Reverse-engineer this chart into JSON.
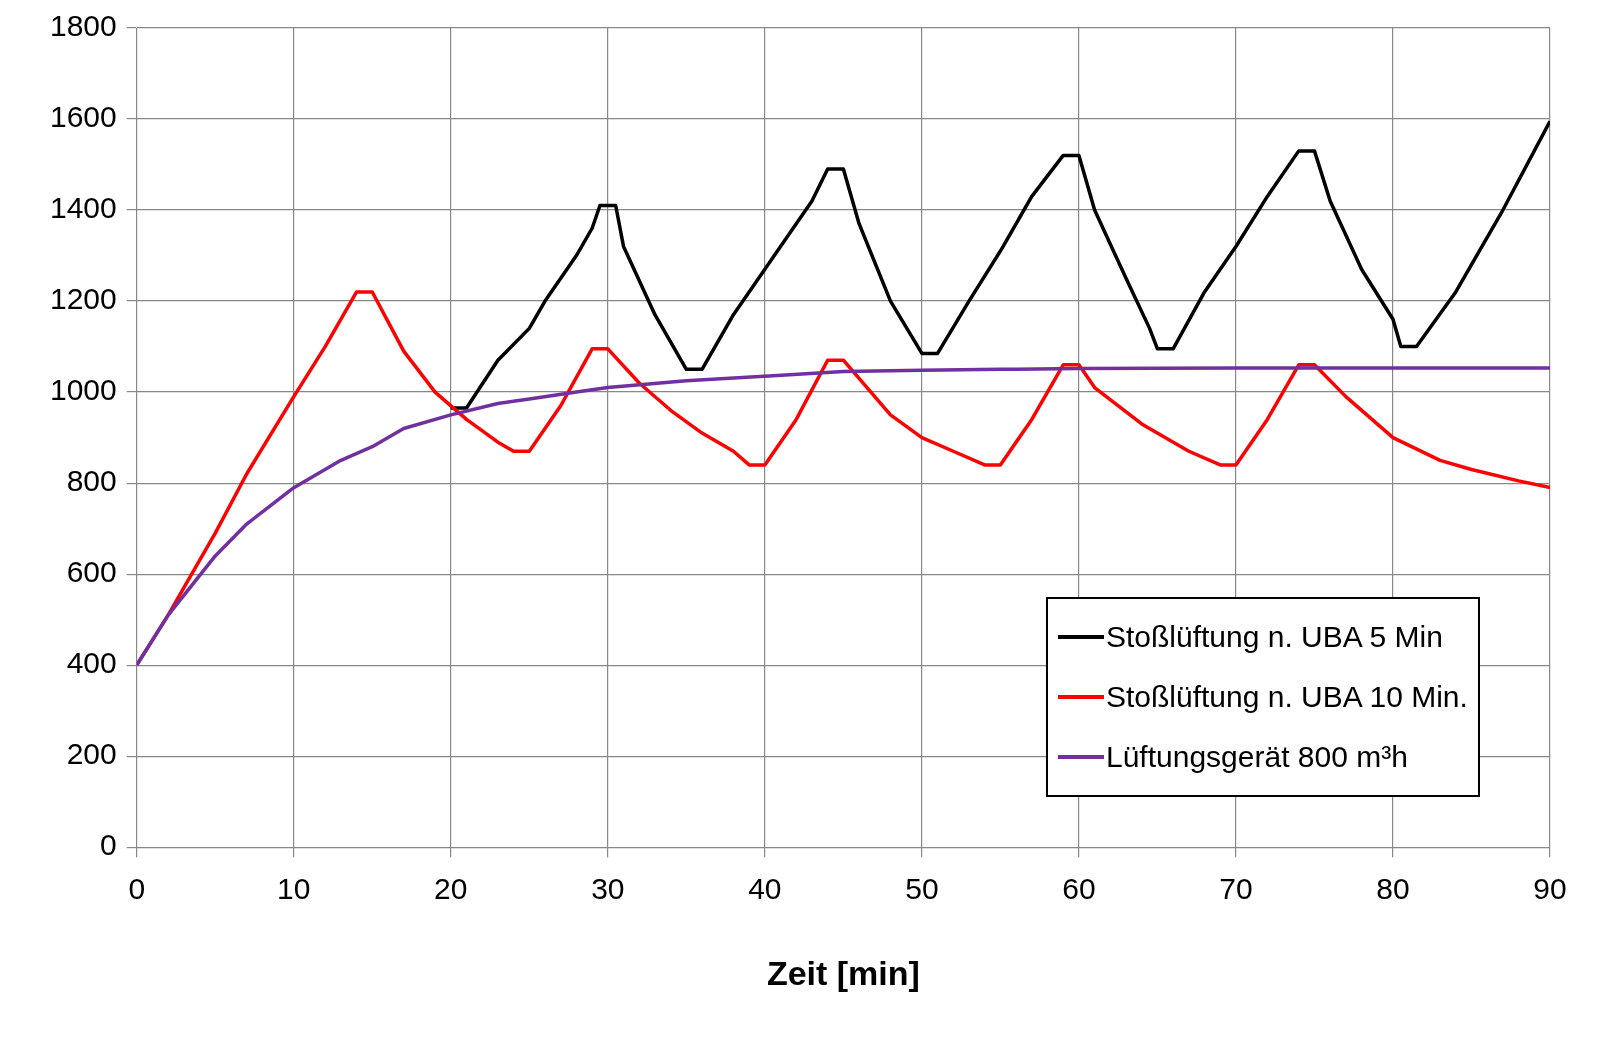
{
  "chart_data": {
    "type": "line",
    "xlabel": "Zeit [min]",
    "xlim": [
      0,
      90
    ],
    "xticks": [
      0,
      10,
      20,
      30,
      40,
      50,
      60,
      70,
      80,
      90
    ],
    "ylim": [
      0,
      1800
    ],
    "yticks": [
      0,
      200,
      400,
      600,
      800,
      1000,
      1200,
      1400,
      1600,
      1800
    ],
    "grid": true,
    "legend": "bottom right",
    "marker": "none",
    "line_style": "solid",
    "series": [
      {
        "name": "Stoßlüftung n. UBA 5 Min",
        "color": "#000000",
        "x": [
          20,
          21,
          23,
          25,
          26,
          28,
          29,
          29.5,
          30.5,
          31,
          33,
          35,
          36,
          38,
          40,
          43,
          44,
          45,
          46,
          48,
          50,
          51,
          53,
          55,
          57,
          59,
          60,
          61,
          63,
          64.5,
          65,
          66,
          68,
          70,
          72,
          74,
          75,
          76,
          78,
          80,
          80.5,
          81.5,
          84,
          87,
          90
        ],
        "values": [
          965,
          965,
          1070,
          1140,
          1200,
          1300,
          1360,
          1410,
          1410,
          1320,
          1170,
          1050,
          1050,
          1170,
          1270,
          1420,
          1490,
          1490,
          1370,
          1200,
          1085,
          1085,
          1200,
          1310,
          1430,
          1520,
          1520,
          1400,
          1250,
          1140,
          1095,
          1095,
          1220,
          1320,
          1430,
          1530,
          1530,
          1420,
          1270,
          1160,
          1100,
          1100,
          1220,
          1400,
          1595
        ]
      },
      {
        "name": "Stoßlüftung n. UBA 10 Min.",
        "color": "#ff0000",
        "x": [
          0,
          2,
          4,
          5,
          7,
          10,
          12,
          14,
          15,
          17,
          19,
          21,
          23,
          24,
          25,
          27,
          29,
          30,
          32,
          34,
          36,
          38,
          39,
          40,
          42,
          44,
          45,
          46,
          48,
          50,
          52,
          54,
          55,
          57,
          59,
          60,
          61,
          64,
          67,
          69,
          70,
          72,
          74,
          75,
          77,
          80,
          83,
          85,
          88,
          90
        ],
        "values": [
          400,
          510,
          630,
          690,
          820,
          990,
          1100,
          1220,
          1220,
          1090,
          1000,
          940,
          890,
          870,
          870,
          970,
          1095,
          1095,
          1020,
          960,
          910,
          870,
          840,
          840,
          940,
          1070,
          1070,
          1030,
          950,
          900,
          870,
          840,
          840,
          940,
          1060,
          1060,
          1010,
          930,
          870,
          840,
          840,
          940,
          1060,
          1060,
          990,
          900,
          850,
          830,
          805,
          790
        ]
      },
      {
        "name": "Lüftungsgerät 800 m³h",
        "color": "#7030a0",
        "x": [
          0,
          2,
          5,
          7,
          10,
          13,
          15,
          17,
          20,
          23,
          25,
          28,
          30,
          35,
          40,
          45,
          50,
          55,
          60,
          70,
          80,
          90
        ],
        "values": [
          400,
          510,
          640,
          710,
          790,
          850,
          880,
          920,
          950,
          975,
          985,
          1000,
          1010,
          1025,
          1035,
          1045,
          1048,
          1050,
          1052,
          1053,
          1053,
          1053
        ]
      }
    ]
  }
}
